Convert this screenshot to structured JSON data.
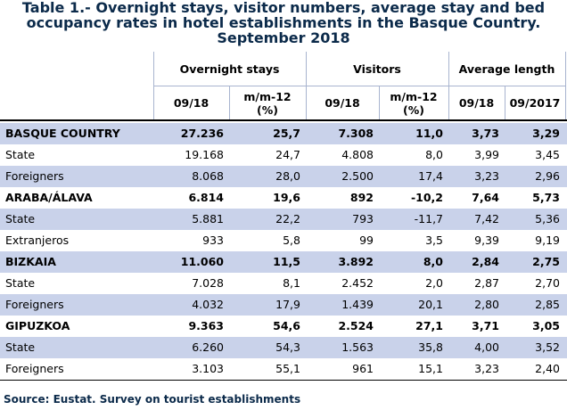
{
  "title": {
    "line1": "Table 1.- Overnight stays, visitor numbers, average stay and bed",
    "line2": "occupancy rates in hotel establishments in the Basque Country.",
    "line3": "September 2018"
  },
  "headers": {
    "groups": [
      "Overnight stays",
      "Visitors",
      "Average length"
    ],
    "sub": [
      "09/18",
      "m/m-12\n(%)",
      "09/18",
      "m/m-12\n(%)",
      "09/18",
      "09/2017"
    ]
  },
  "rows": [
    {
      "label": "BASQUE COUNTRY",
      "bold": true,
      "values": [
        "27.236",
        "25,7",
        "7.308",
        "11,0",
        "3,73",
        "3,29"
      ]
    },
    {
      "label": "State",
      "bold": false,
      "values": [
        "19.168",
        "24,7",
        "4.808",
        "8,0",
        "3,99",
        "3,45"
      ]
    },
    {
      "label": "Foreigners",
      "bold": false,
      "values": [
        "8.068",
        "28,0",
        "2.500",
        "17,4",
        "3,23",
        "2,96"
      ]
    },
    {
      "label": "ARABA/ÁLAVA",
      "bold": true,
      "values": [
        "6.814",
        "19,6",
        "892",
        "-10,2",
        "7,64",
        "5,73"
      ]
    },
    {
      "label": "State",
      "bold": false,
      "values": [
        "5.881",
        "22,2",
        "793",
        "-11,7",
        "7,42",
        "5,36"
      ]
    },
    {
      "label": "Extranjeros",
      "bold": false,
      "values": [
        "933",
        "5,8",
        "99",
        "3,5",
        "9,39",
        "9,19"
      ]
    },
    {
      "label": "BIZKAIA",
      "bold": true,
      "values": [
        "11.060",
        "11,5",
        "3.892",
        "8,0",
        "2,84",
        "2,75"
      ]
    },
    {
      "label": "State",
      "bold": false,
      "values": [
        "7.028",
        "8,1",
        "2.452",
        "2,0",
        "2,87",
        "2,70"
      ]
    },
    {
      "label": "Foreigners",
      "bold": false,
      "values": [
        "4.032",
        "17,9",
        "1.439",
        "20,1",
        "2,80",
        "2,85"
      ]
    },
    {
      "label": "GIPUZKOA",
      "bold": true,
      "values": [
        "9.363",
        "54,6",
        "2.524",
        "27,1",
        "3,71",
        "3,05"
      ]
    },
    {
      "label": "State",
      "bold": false,
      "values": [
        "6.260",
        "54,3",
        "1.563",
        "35,8",
        "4,00",
        "3,52"
      ]
    },
    {
      "label": "Foreigners",
      "bold": false,
      "values": [
        "3.103",
        "55,1",
        "961",
        "15,1",
        "3,23",
        "2,40"
      ]
    }
  ],
  "source": "Source: Eustat. Survey on tourist establishments",
  "colors": {
    "title": "#0b2a4a",
    "band": "#c9d2ea",
    "grid": "#a8b4cf"
  }
}
